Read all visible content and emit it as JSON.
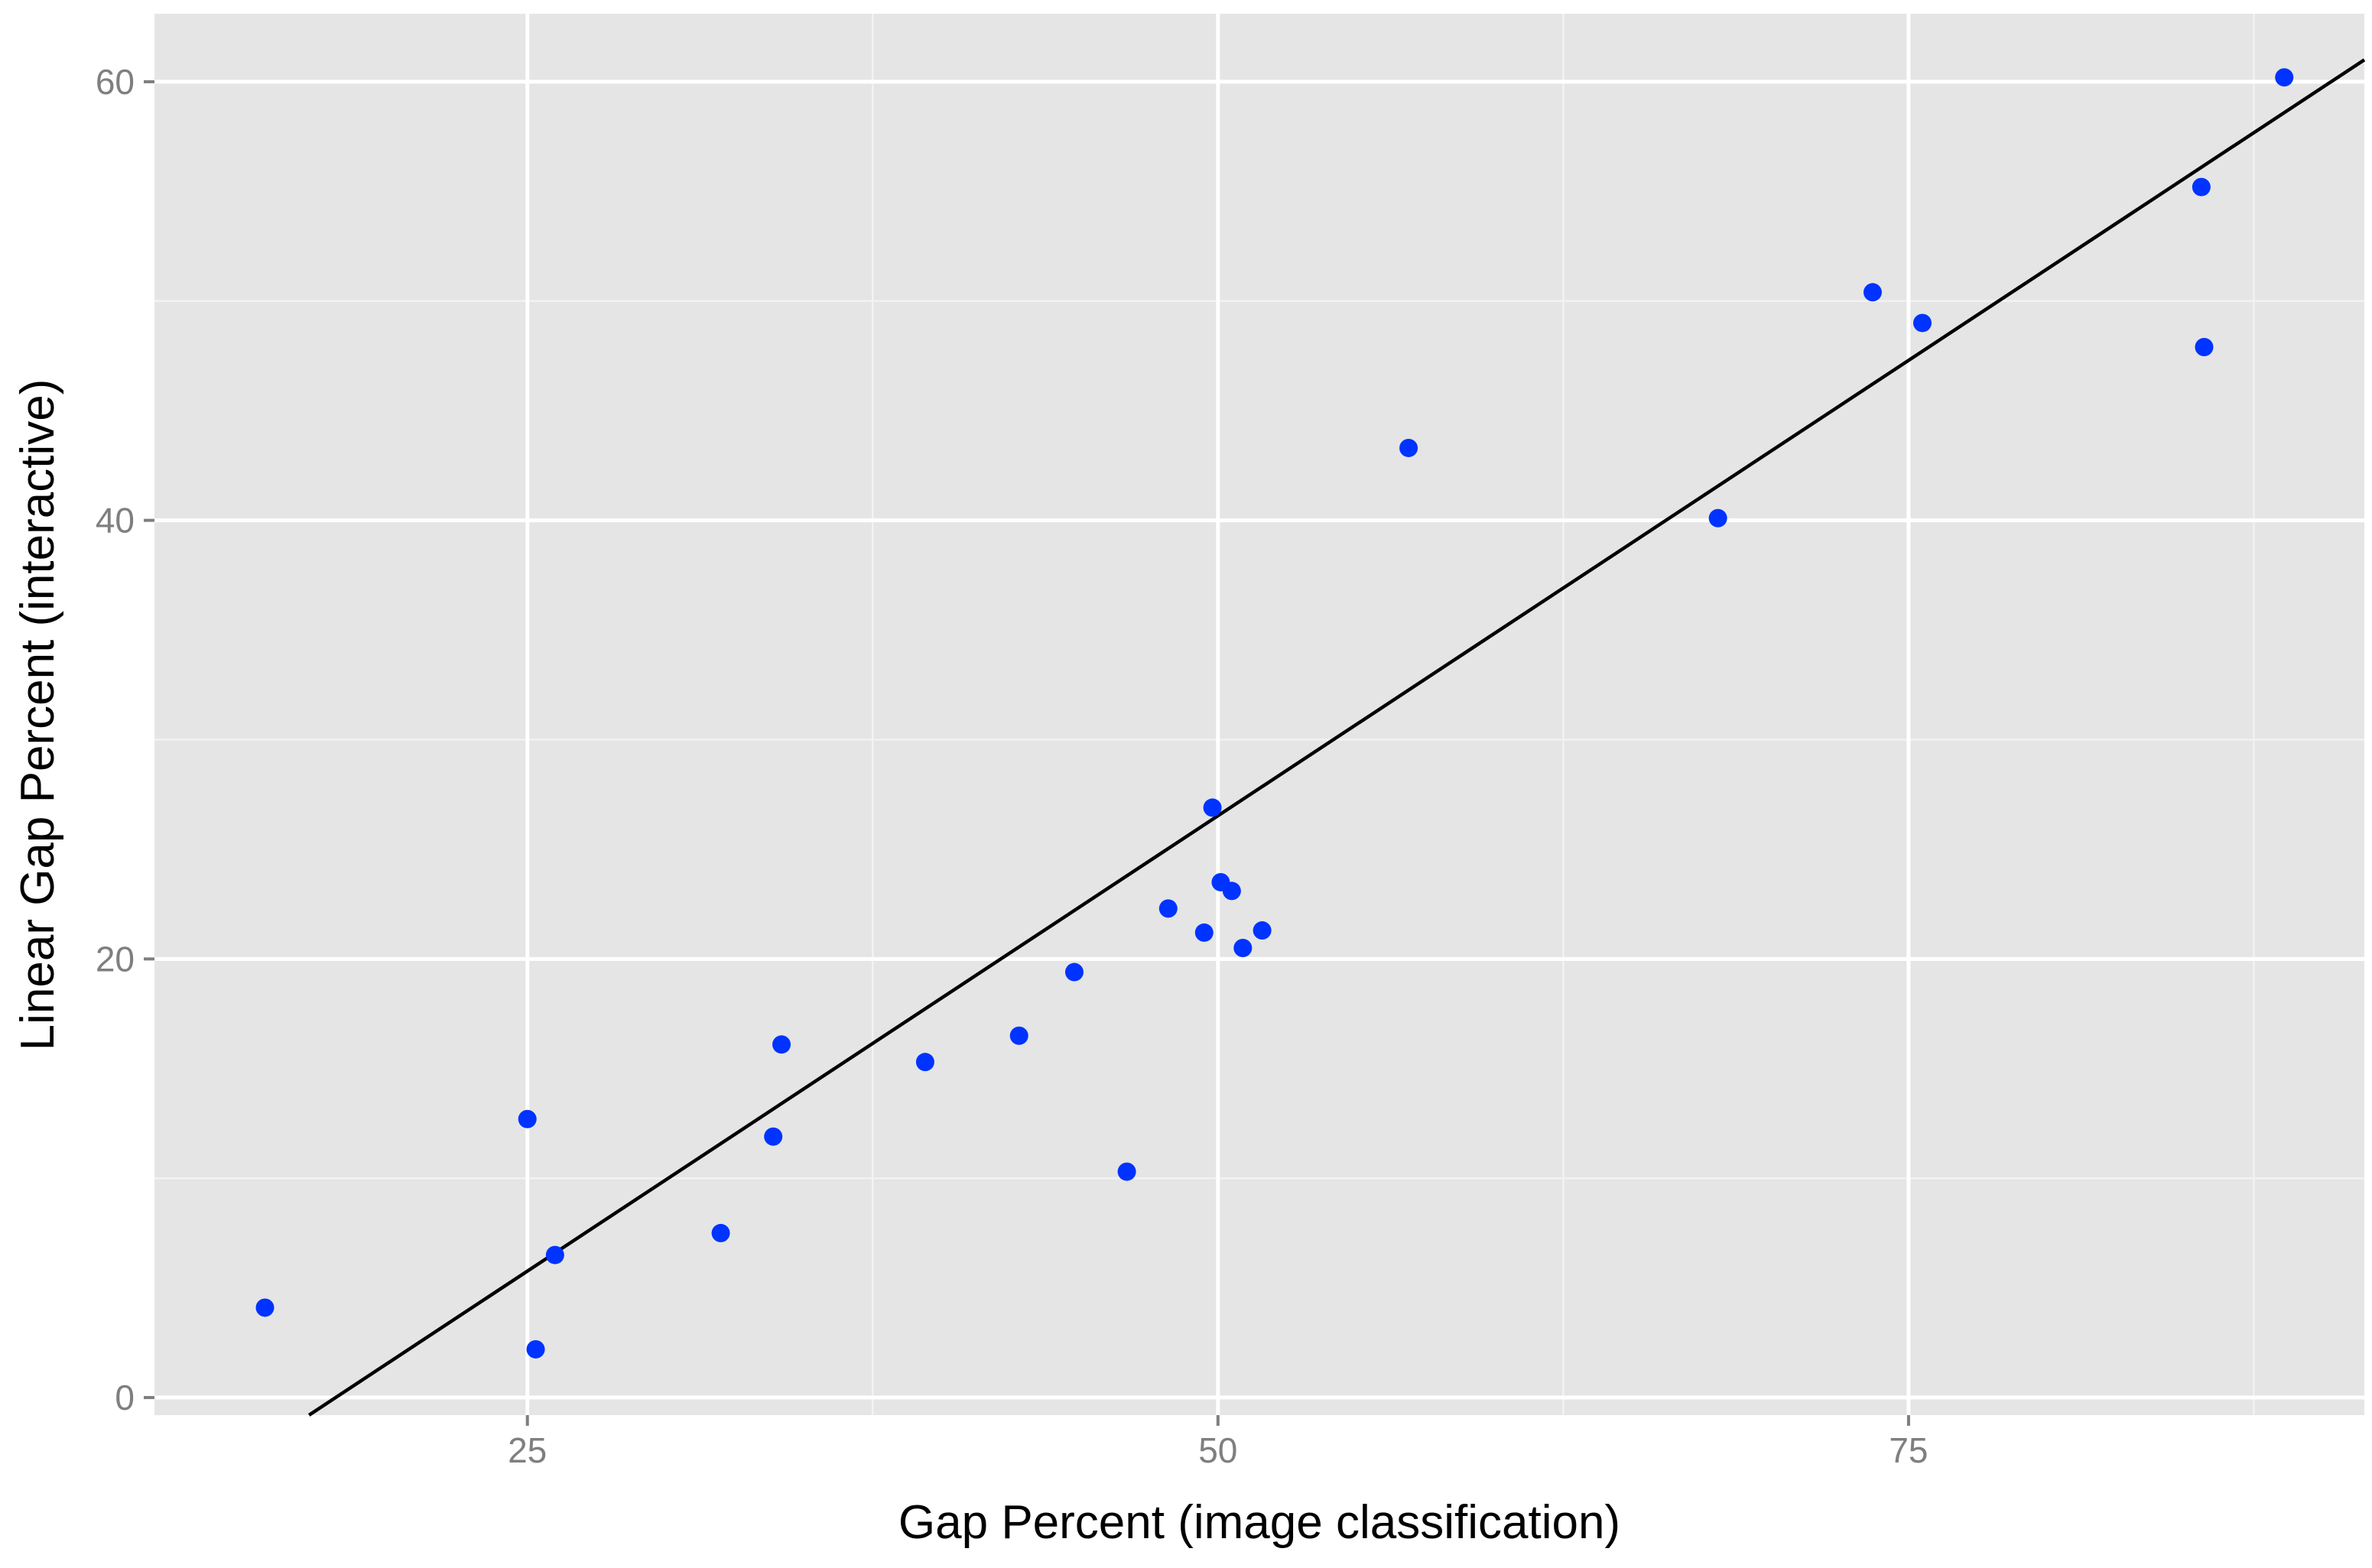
{
  "chart_data": {
    "type": "scatter",
    "title": "",
    "xlabel": "Gap Percent (image classification)",
    "ylabel": "Linear Gap Percent (interactive)",
    "xlim": [
      11.5,
      91.5
    ],
    "ylim": [
      -0.8,
      63.1
    ],
    "x_ticks": [
      25,
      50,
      75
    ],
    "y_ticks": [
      0,
      20,
      40,
      60
    ],
    "x_minor": [
      37.5,
      62.5,
      87.5
    ],
    "y_minor": [
      10,
      30,
      50
    ],
    "grid": true,
    "colors": {
      "panel": "#e5e5e5",
      "points": "#0033ff",
      "fit_line": "#000000",
      "tick_text": "#7f7f7f"
    },
    "series": [
      {
        "points": [
          [
            15.5,
            4.1
          ],
          [
            25.0,
            12.7
          ],
          [
            25.3,
            2.2
          ],
          [
            26.0,
            6.5
          ],
          [
            32.0,
            7.5
          ],
          [
            33.9,
            11.9
          ],
          [
            34.2,
            16.1
          ],
          [
            39.4,
            15.3
          ],
          [
            42.8,
            16.5
          ],
          [
            44.8,
            19.4
          ],
          [
            46.7,
            10.3
          ],
          [
            48.2,
            22.3
          ],
          [
            49.5,
            21.2
          ],
          [
            49.8,
            26.9
          ],
          [
            50.1,
            23.5
          ],
          [
            50.5,
            23.1
          ],
          [
            50.9,
            20.5
          ],
          [
            51.6,
            21.3
          ],
          [
            56.9,
            43.3
          ],
          [
            68.1,
            40.1
          ],
          [
            73.7,
            50.4
          ],
          [
            75.5,
            49.0
          ],
          [
            85.6,
            55.2
          ],
          [
            85.7,
            47.9
          ],
          [
            88.6,
            60.2
          ]
        ]
      }
    ],
    "fit_line": {
      "slope": 0.8306,
      "intercept": -15.0
    }
  }
}
